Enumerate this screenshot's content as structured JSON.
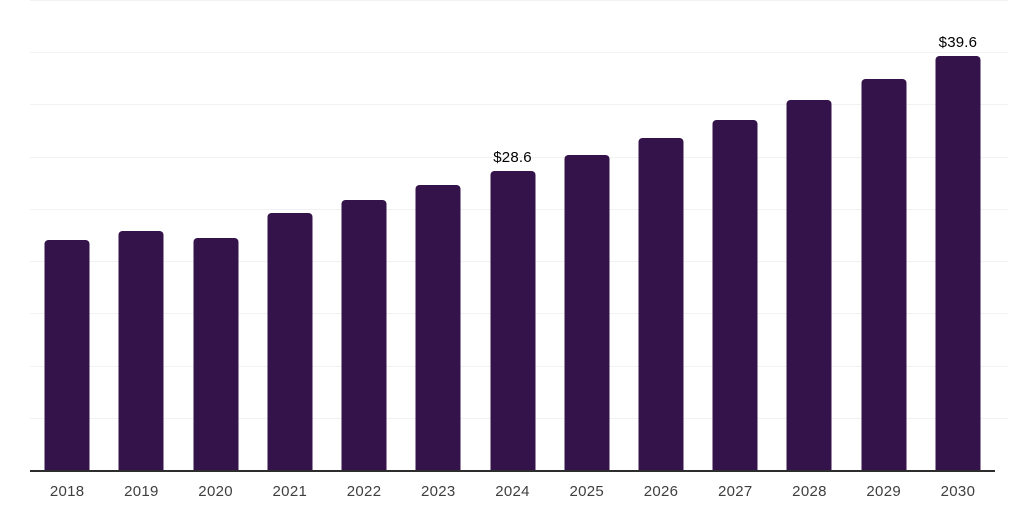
{
  "chart_data": {
    "type": "bar",
    "title": "",
    "xlabel": "",
    "ylabel": "",
    "categories": [
      "2018",
      "2019",
      "2020",
      "2021",
      "2022",
      "2023",
      "2024",
      "2025",
      "2026",
      "2027",
      "2028",
      "2029",
      "2030"
    ],
    "values": [
      22.0,
      22.9,
      22.2,
      24.6,
      25.9,
      27.3,
      28.6,
      30.2,
      31.8,
      33.5,
      35.4,
      37.4,
      39.6
    ],
    "annotations": [
      {
        "category": "2024",
        "label": "$28.6"
      },
      {
        "category": "2030",
        "label": "$39.6"
      }
    ],
    "ylim": [
      0,
      45
    ],
    "grid_step": 5,
    "grid": "horizontal",
    "legend_position": "none",
    "y_axis_tick_labels": "hidden",
    "colors": {
      "bar": "#34124A",
      "gridline": "#F2F2F2",
      "axis_line": "#2D2D2D",
      "tick_label": "#3F3F3F",
      "annotation_text": "#000000",
      "background": "#FFFFFF"
    }
  }
}
